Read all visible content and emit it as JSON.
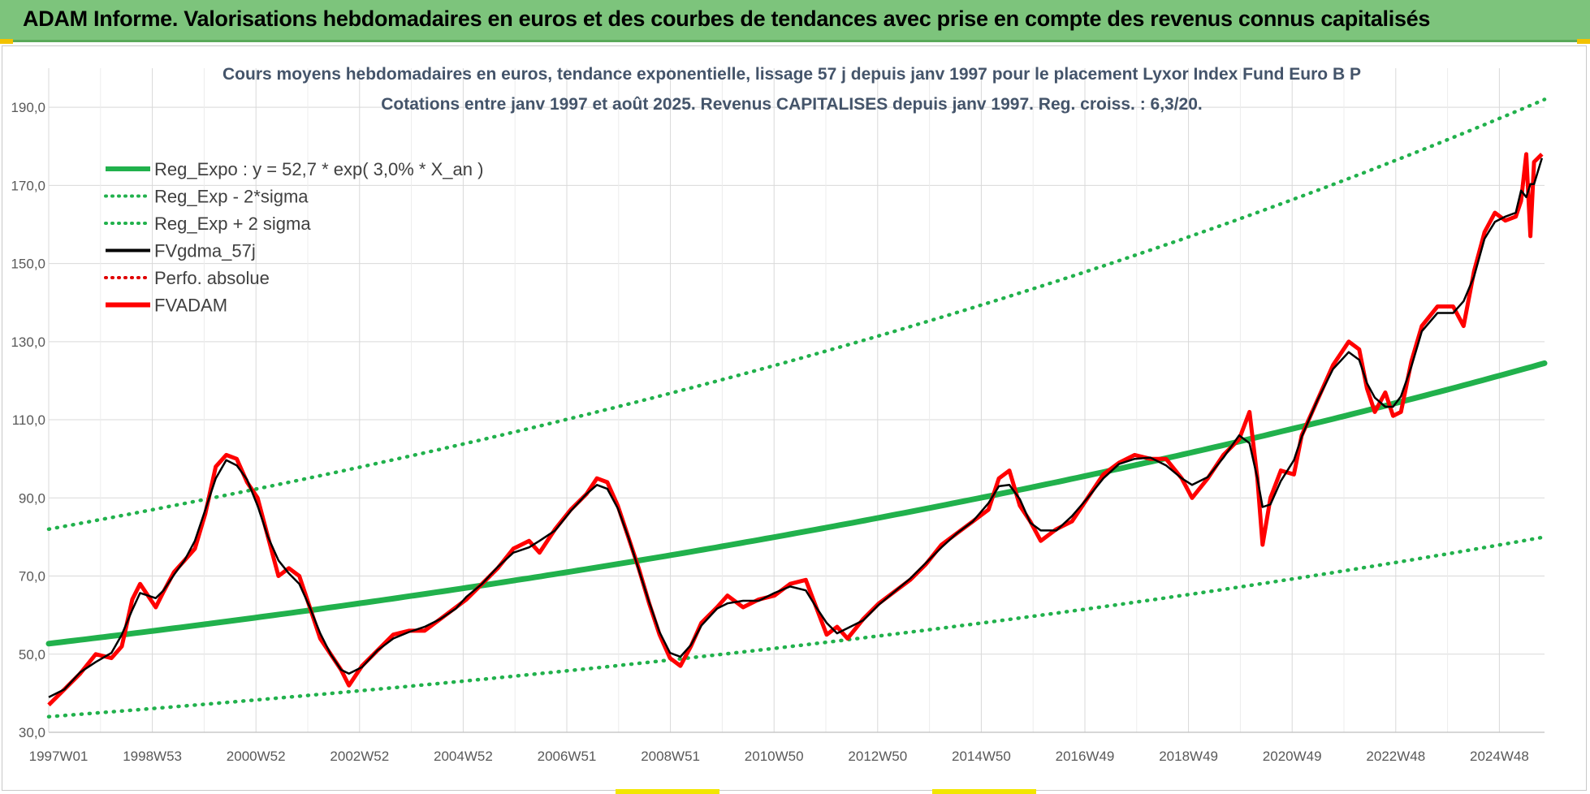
{
  "header": {
    "title": "ADAM Informe. Valorisations hebdomadaires en euros et des courbes de tendances avec prise en compte des revenus connus capitalisés"
  },
  "chart_data": {
    "type": "line",
    "title": "Cours moyens hebdomadaires en euros, tendance exponentielle, lissage 57 j depuis janv 1997 pour le placement Lyxor Index Fund Euro B P",
    "subtitle": "Cotations entre janv 1997 et août 2025. Revenus CAPITALISES depuis janv 1997. Reg. croiss. : 6,3/20.",
    "x_tick_labels": [
      "1997W01",
      "1998W53",
      "2000W52",
      "2002W52",
      "2004W52",
      "2006W51",
      "2008W51",
      "2010W50",
      "2012W50",
      "2014W50",
      "2016W49",
      "2018W49",
      "2020W49",
      "2022W48",
      "2024W48"
    ],
    "x_range_years": [
      1997.0,
      2025.65
    ],
    "y_ticks": [
      "30,0",
      "50,0",
      "70,0",
      "90,0",
      "110,0",
      "130,0",
      "150,0",
      "170,0",
      "190,0"
    ],
    "ylim": [
      30,
      200
    ],
    "grid": true,
    "legend_position": "top-left",
    "legend": [
      {
        "label": "Reg_Expo : y = 52,7 * exp( 3,0% *  X_an )",
        "color": "#21b14c",
        "style": "solid-thick"
      },
      {
        "label": "Reg_Exp - 2*sigma",
        "color": "#21b14c",
        "style": "dotted"
      },
      {
        "label": "Reg_Exp + 2 sigma",
        "color": "#21b14c",
        "style": "dotted"
      },
      {
        "label": "FVgdma_57j",
        "color": "#000000",
        "style": "solid"
      },
      {
        "label": "Perfo. absolue",
        "color": "#e00000",
        "style": "dotted"
      },
      {
        "label": "FVADAM",
        "color": "#ff0000",
        "style": "solid-thick"
      }
    ],
    "regression": {
      "a": 52.7,
      "rate": 0.03
    },
    "band_lower": {
      "start": 34.0,
      "end": 80.0
    },
    "band_upper": {
      "start": 82.0,
      "end": 192.0
    },
    "fvadam": [
      [
        1997.0,
        37
      ],
      [
        1997.3,
        41
      ],
      [
        1997.6,
        45
      ],
      [
        1997.9,
        50
      ],
      [
        1998.2,
        49
      ],
      [
        1998.4,
        52
      ],
      [
        1998.6,
        64
      ],
      [
        1998.75,
        68
      ],
      [
        1998.9,
        65
      ],
      [
        1999.05,
        62
      ],
      [
        1999.2,
        66
      ],
      [
        1999.4,
        71
      ],
      [
        1999.6,
        74
      ],
      [
        1999.8,
        77
      ],
      [
        2000.0,
        86
      ],
      [
        2000.2,
        98
      ],
      [
        2000.4,
        101
      ],
      [
        2000.6,
        100
      ],
      [
        2000.8,
        94
      ],
      [
        2001.0,
        90
      ],
      [
        2001.2,
        80
      ],
      [
        2001.4,
        70
      ],
      [
        2001.6,
        72
      ],
      [
        2001.8,
        70
      ],
      [
        2002.0,
        62
      ],
      [
        2002.2,
        54
      ],
      [
        2002.4,
        50
      ],
      [
        2002.6,
        46
      ],
      [
        2002.75,
        42
      ],
      [
        2003.0,
        47
      ],
      [
        2003.3,
        51
      ],
      [
        2003.6,
        55
      ],
      [
        2003.9,
        56
      ],
      [
        2004.2,
        56
      ],
      [
        2004.5,
        59
      ],
      [
        2004.8,
        62
      ],
      [
        2005.0,
        64
      ],
      [
        2005.3,
        68
      ],
      [
        2005.6,
        72
      ],
      [
        2005.9,
        77
      ],
      [
        2006.2,
        79
      ],
      [
        2006.4,
        76
      ],
      [
        2006.7,
        82
      ],
      [
        2007.0,
        87
      ],
      [
        2007.3,
        91
      ],
      [
        2007.5,
        95
      ],
      [
        2007.7,
        94
      ],
      [
        2007.9,
        88
      ],
      [
        2008.1,
        80
      ],
      [
        2008.3,
        72
      ],
      [
        2008.5,
        63
      ],
      [
        2008.7,
        55
      ],
      [
        2008.9,
        49
      ],
      [
        2009.1,
        47
      ],
      [
        2009.3,
        52
      ],
      [
        2009.5,
        58
      ],
      [
        2009.8,
        62
      ],
      [
        2010.0,
        65
      ],
      [
        2010.3,
        62
      ],
      [
        2010.6,
        64
      ],
      [
        2010.9,
        65
      ],
      [
        2011.2,
        68
      ],
      [
        2011.5,
        69
      ],
      [
        2011.7,
        62
      ],
      [
        2011.9,
        55
      ],
      [
        2012.1,
        57
      ],
      [
        2012.3,
        54
      ],
      [
        2012.6,
        59
      ],
      [
        2012.9,
        63
      ],
      [
        2013.2,
        66
      ],
      [
        2013.5,
        69
      ],
      [
        2013.8,
        73
      ],
      [
        2014.1,
        78
      ],
      [
        2014.4,
        81
      ],
      [
        2014.7,
        84
      ],
      [
        2015.0,
        87
      ],
      [
        2015.2,
        95
      ],
      [
        2015.4,
        97
      ],
      [
        2015.6,
        88
      ],
      [
        2015.8,
        84
      ],
      [
        2016.0,
        79
      ],
      [
        2016.3,
        82
      ],
      [
        2016.6,
        84
      ],
      [
        2016.9,
        90
      ],
      [
        2017.2,
        96
      ],
      [
        2017.5,
        99
      ],
      [
        2017.8,
        101
      ],
      [
        2018.1,
        100
      ],
      [
        2018.4,
        100
      ],
      [
        2018.7,
        95
      ],
      [
        2018.9,
        90
      ],
      [
        2019.2,
        95
      ],
      [
        2019.5,
        101
      ],
      [
        2019.8,
        105
      ],
      [
        2020.0,
        112
      ],
      [
        2020.15,
        95
      ],
      [
        2020.25,
        78
      ],
      [
        2020.4,
        90
      ],
      [
        2020.6,
        97
      ],
      [
        2020.85,
        96
      ],
      [
        2021.0,
        106
      ],
      [
        2021.3,
        115
      ],
      [
        2021.6,
        124
      ],
      [
        2021.9,
        130
      ],
      [
        2022.1,
        128
      ],
      [
        2022.25,
        118
      ],
      [
        2022.4,
        112
      ],
      [
        2022.6,
        117
      ],
      [
        2022.75,
        111
      ],
      [
        2022.9,
        112
      ],
      [
        2023.1,
        125
      ],
      [
        2023.3,
        134
      ],
      [
        2023.6,
        139
      ],
      [
        2023.9,
        139
      ],
      [
        2024.1,
        134
      ],
      [
        2024.3,
        148
      ],
      [
        2024.5,
        158
      ],
      [
        2024.7,
        163
      ],
      [
        2024.9,
        161
      ],
      [
        2025.1,
        162
      ],
      [
        2025.2,
        166
      ],
      [
        2025.3,
        178
      ],
      [
        2025.38,
        157
      ],
      [
        2025.45,
        176
      ],
      [
        2025.6,
        178
      ]
    ]
  }
}
